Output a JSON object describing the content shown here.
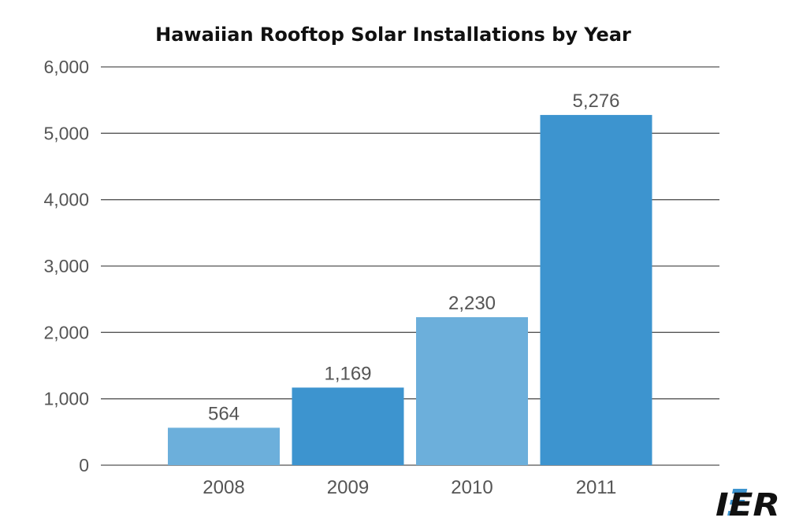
{
  "chart_data": {
    "type": "bar",
    "title": "Hawaiian Rooftop Solar Installations by Year",
    "xlabel": "",
    "ylabel": "",
    "categories": [
      "2008",
      "2009",
      "2010",
      "2011"
    ],
    "values": [
      564,
      1169,
      2230,
      5276
    ],
    "data_labels": [
      "564",
      "1,169",
      "2,230",
      "5,276"
    ],
    "ylim": [
      0,
      6000
    ],
    "y_ticks": [
      {
        "value": 0,
        "label": "0"
      },
      {
        "value": 1000,
        "label": "1,000"
      },
      {
        "value": 2000,
        "label": "2,000"
      },
      {
        "value": 3000,
        "label": "3,000"
      },
      {
        "value": 4000,
        "label": "4,000"
      },
      {
        "value": 5000,
        "label": "5,000"
      },
      {
        "value": 6000,
        "label": "6,000"
      }
    ],
    "grid": true,
    "legend": "none",
    "bar_colors": [
      "#6cafdb",
      "#3d94cf",
      "#6cafdb",
      "#3d94cf"
    ]
  },
  "logo": {
    "text": "IER",
    "accent_color": "#3d94cf"
  }
}
